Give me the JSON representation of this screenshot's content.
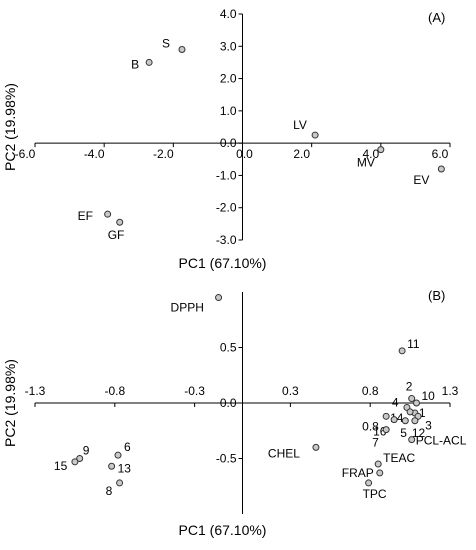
{
  "chart_data": [
    {
      "type": "scatter",
      "panel_label": "(A)",
      "xlabel": "PC1 (67.10%)",
      "ylabel": "PC2 (19.98%)",
      "xlim": [
        -6.0,
        6.0
      ],
      "ylim": [
        -3.0,
        4.0
      ],
      "x_ticks": [
        -6.0,
        -4.0,
        -2.0,
        0.0,
        2.0,
        4.0,
        6.0
      ],
      "x_tick_labels": [
        "-6.0",
        "-4.0",
        "-2.0",
        "0.0",
        "2.0",
        "4.0",
        "6.0"
      ],
      "y_ticks": [
        -3.0,
        -2.0,
        -1.0,
        0.0,
        1.0,
        2.0,
        3.0,
        4.0
      ],
      "y_tick_labels": [
        "-3.0",
        "-2.0",
        "-1.0",
        "0.0",
        "1.0",
        "2.0",
        "3.0",
        "4.0"
      ],
      "points": [
        {
          "label": "B",
          "x": -2.7,
          "y": 2.5
        },
        {
          "label": "S",
          "x": -1.75,
          "y": 2.9
        },
        {
          "label": "LV",
          "x": 2.1,
          "y": 0.25
        },
        {
          "label": "MV",
          "x": 4.0,
          "y": -0.2
        },
        {
          "label": "EV",
          "x": 5.75,
          "y": -0.8
        },
        {
          "label": "EF",
          "x": -3.9,
          "y": -2.2
        },
        {
          "label": "GF",
          "x": -3.55,
          "y": -2.45
        }
      ]
    },
    {
      "type": "scatter",
      "panel_label": "(B)",
      "xlabel": "PC1 (67.10%)",
      "ylabel": "PC2 (19.98%)",
      "xlim": [
        -1.3,
        1.3
      ],
      "ylim": [
        -1.0,
        1.0
      ],
      "x_ticks": [
        -1.3,
        -0.8,
        -0.3,
        0.3,
        0.8,
        1.3
      ],
      "x_tick_labels": [
        "-1.3",
        "-0.8",
        "-0.3",
        "0.3",
        "0.8",
        "1.3"
      ],
      "y_ticks": [
        -0.5,
        0.0,
        0.5
      ],
      "y_tick_labels": [
        "-0.5",
        "0.0",
        "0.5"
      ],
      "points": [
        {
          "label": "DPPH",
          "x": -0.15,
          "y": 0.95
        },
        {
          "label": "11",
          "x": 1.0,
          "y": 0.47
        },
        {
          "label": "2",
          "x": 1.06,
          "y": 0.04
        },
        {
          "label": "10",
          "x": 1.09,
          "y": 0.0
        },
        {
          "label": "4",
          "x": 1.03,
          "y": -0.04
        },
        {
          "label": "1",
          "x": 1.08,
          "y": -0.09
        },
        {
          "label": "3",
          "x": 1.1,
          "y": -0.12
        },
        {
          "label": "14",
          "x": 1.05,
          "y": -0.08
        },
        {
          "label": "0.8",
          "x": 0.9,
          "y": -0.12
        },
        {
          "label": "16",
          "x": 0.95,
          "y": -0.15
        },
        {
          "label": "5",
          "x": 1.02,
          "y": -0.16
        },
        {
          "label": "12",
          "x": 1.08,
          "y": -0.16
        },
        {
          "label": "7",
          "x": 0.9,
          "y": -0.24
        },
        {
          "label": "PCL-ACL",
          "x": 1.06,
          "y": -0.33
        },
        {
          "label": "CHEL",
          "x": 0.46,
          "y": -0.4
        },
        {
          "label": "TEAC",
          "x": 0.85,
          "y": -0.55
        },
        {
          "label": "FRAP",
          "x": 0.86,
          "y": -0.63
        },
        {
          "label": "TPC",
          "x": 0.79,
          "y": -0.72
        },
        {
          "label": "9",
          "x": -1.02,
          "y": -0.5
        },
        {
          "label": "6",
          "x": -0.78,
          "y": -0.47
        },
        {
          "label": "15",
          "x": -1.05,
          "y": -0.53
        },
        {
          "label": "13",
          "x": -0.82,
          "y": -0.57
        },
        {
          "label": "8",
          "x": -0.77,
          "y": -0.72
        }
      ]
    }
  ]
}
